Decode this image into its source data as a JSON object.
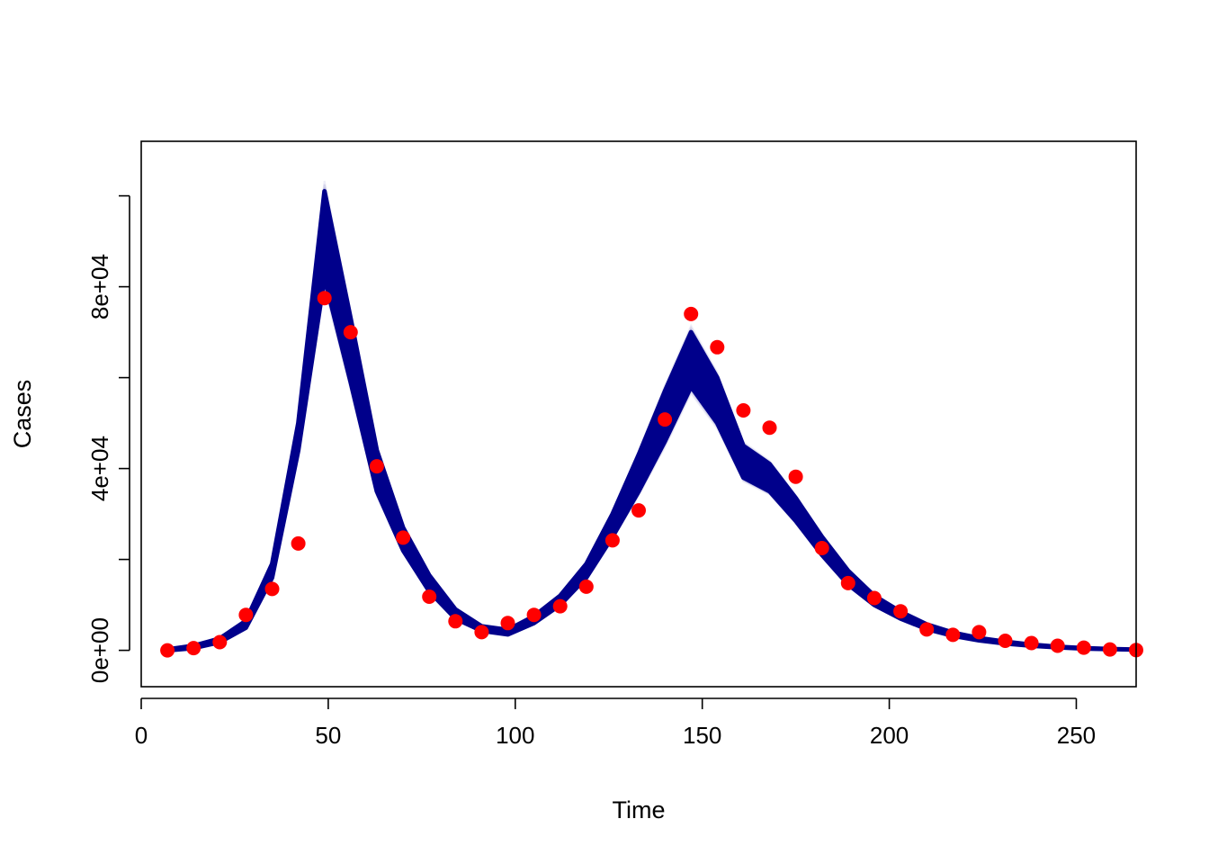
{
  "chart_data": {
    "type": "line",
    "title": "",
    "xlabel": "Time",
    "ylabel": "Cases",
    "xlim": [
      0,
      266
    ],
    "ylim": [
      -8000,
      112000
    ],
    "x_ticks": [
      0,
      50,
      100,
      150,
      200,
      250
    ],
    "x_tick_labels": [
      "0",
      "50",
      "100",
      "150",
      "200",
      "250"
    ],
    "y_ticks": [
      0,
      20000,
      40000,
      60000,
      80000,
      100000
    ],
    "y_tick_labels": [
      "0e+00",
      "",
      "4e+04",
      "",
      "8e+04",
      ""
    ],
    "grid": false,
    "legend": "none",
    "colors": {
      "simulation_band": "#00008b",
      "observed_points": "#ff0000",
      "axes": "#000000"
    },
    "x": [
      7,
      14,
      21,
      28,
      35,
      42,
      49,
      56,
      63,
      70,
      77,
      84,
      91,
      98,
      105,
      112,
      119,
      126,
      133,
      140,
      147,
      154,
      161,
      168,
      175,
      182,
      189,
      196,
      203,
      210,
      217,
      224,
      231,
      238,
      245,
      252,
      259,
      266
    ],
    "series": [
      {
        "role": "simulation-band-lower",
        "values": [
          0,
          500,
          1800,
          5000,
          16000,
          44000,
          82000,
          59000,
          35000,
          22000,
          13000,
          7000,
          4300,
          3500,
          6000,
          10000,
          16000,
          25000,
          35000,
          46000,
          58000,
          50000,
          38000,
          35000,
          28500,
          21000,
          14500,
          10000,
          7000,
          4700,
          3200,
          2200,
          1500,
          1000,
          650,
          400,
          250,
          150
        ]
      },
      {
        "role": "simulation-band-upper",
        "values": [
          200,
          1000,
          2600,
          6500,
          19000,
          50000,
          101000,
          73000,
          44000,
          27000,
          16500,
          9000,
          5300,
          4500,
          7500,
          12000,
          19000,
          30000,
          43000,
          57000,
          70000,
          60000,
          45000,
          41000,
          33500,
          25000,
          17500,
          12000,
          8500,
          5700,
          3900,
          2700,
          1900,
          1250,
          800,
          500,
          300,
          180
        ]
      },
      {
        "role": "observed",
        "values": [
          0,
          500,
          1800,
          7800,
          13500,
          23500,
          77500,
          70000,
          40500,
          24800,
          11800,
          6400,
          4000,
          6000,
          7800,
          9700,
          14000,
          24200,
          30800,
          50800,
          74000,
          66700,
          52800,
          49000,
          38200,
          22500,
          14800,
          11500,
          8600,
          4600,
          3400,
          4000,
          2100,
          1600,
          1000,
          600,
          200,
          50
        ]
      }
    ]
  }
}
